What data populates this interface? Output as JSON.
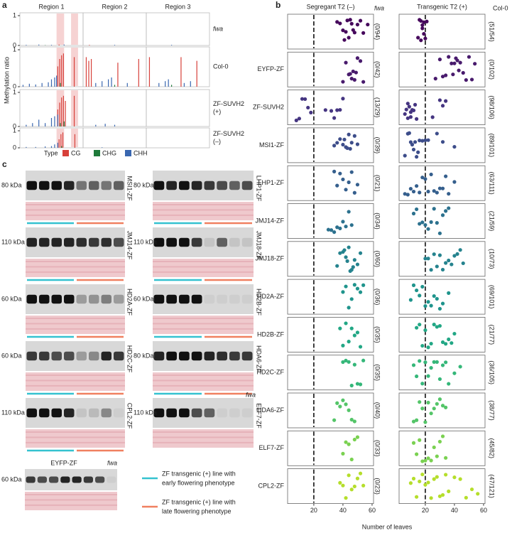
{
  "chart_data": [
    {
      "type": "bar",
      "panel_label": "a",
      "y_label": "Methylation ratio",
      "regions": [
        "Region 1",
        "Region 2",
        "Region 3"
      ],
      "xlim": [
        0,
        3
      ],
      "ylim": [
        0,
        1
      ],
      "yticks": [
        0,
        1
      ],
      "legend_title": "Type",
      "series": [
        {
          "name": "CG",
          "color": "#d7403a"
        },
        {
          "name": "CHG",
          "color": "#1e7a3a"
        },
        {
          "name": "CHH",
          "color": "#3a67b0"
        }
      ],
      "panels": [
        {
          "label": [
            "fwa"
          ],
          "data": [
            {
              "x": [
                0.62,
                1.1
              ],
              "values": [
                0.03,
                0.02
              ]
            },
            {
              "x": [
                0.4
              ],
              "values": [
                0.01
              ]
            },
            {
              "x": [
                0.1,
                0.3,
                0.5,
                0.7,
                1.5,
                2.4
              ],
              "values": [
                0.02,
                0.03,
                0.02,
                0.03,
                0.02,
                0.02
              ]
            }
          ]
        },
        {
          "label": [
            "Col-0"
          ],
          "data": [
            {
              "x": [
                0.6,
                0.63,
                0.66,
                0.69,
                0.86,
                1.05,
                1.09,
                1.13,
                1.55,
                1.88,
                2.05,
                2.55,
                2.8
              ],
              "values": [
                0.55,
                0.75,
                0.85,
                0.9,
                0.8,
                0.8,
                0.7,
                0.75,
                0.65,
                0.75,
                0.8,
                0.8,
                0.7
              ]
            },
            {
              "x": [
                0.5,
                0.64,
                1.5,
                2.4
              ],
              "values": [
                0.05,
                0.1,
                0.05,
                0.05
              ]
            },
            {
              "x": [
                0.05,
                0.15,
                0.25,
                0.35,
                0.45,
                0.5,
                0.55,
                0.58,
                1.2,
                1.3,
                1.4,
                1.45,
                1.7,
                2.2,
                2.3,
                2.35,
                2.6,
                2.7
              ],
              "values": [
                0.05,
                0.08,
                0.06,
                0.1,
                0.12,
                0.2,
                0.25,
                0.3,
                0.1,
                0.15,
                0.2,
                0.25,
                0.1,
                0.1,
                0.15,
                0.2,
                0.1,
                0.15
              ]
            }
          ]
        },
        {
          "label": [
            "ZF-SUVH2",
            "(+)"
          ],
          "data": [
            {
              "x": [
                0.6,
                0.63,
                0.66,
                0.69,
                0.72,
                0.86
              ],
              "values": [
                0.5,
                0.7,
                0.85,
                0.9,
                0.75,
                0.9
              ]
            },
            {
              "x": [
                0.64,
                0.7
              ],
              "values": [
                0.1,
                0.15
              ]
            },
            {
              "x": [
                0.1,
                0.2,
                0.3,
                0.4,
                0.5,
                0.55,
                0.6,
                1.2,
                1.35,
                1.5
              ],
              "values": [
                0.05,
                0.1,
                0.2,
                0.1,
                0.25,
                0.3,
                0.35,
                0.05,
                0.08,
                0.05
              ]
            }
          ]
        },
        {
          "label": [
            "ZF-SUVH2",
            "(–)"
          ],
          "data": [
            {
              "x": [
                0.62,
                0.65,
                0.68,
                0.87
              ],
              "values": [
                0.5,
                0.8,
                0.9,
                0.8
              ]
            },
            {
              "x": [
                0.66
              ],
              "values": [
                0.1
              ]
            },
            {
              "x": [
                0.1,
                0.25,
                0.4,
                0.5,
                0.55,
                0.6,
                1.3
              ],
              "values": [
                0.05,
                0.05,
                0.08,
                0.1,
                0.2,
                0.3,
                0.03
              ]
            }
          ]
        }
      ]
    },
    {
      "type": "strip",
      "panel_label": "b",
      "x_label": "Number of leaves",
      "columns": [
        "Segregant T2 (–)",
        "Transgenic T2 (+)"
      ],
      "column_headers": [
        "fwa",
        "Col-0"
      ],
      "xlim": [
        2,
        61
      ],
      "xticks": [
        20,
        40,
        60
      ],
      "reference_line": 20,
      "rows": [
        {
          "color": "#46085c",
          "segregant": {
            "label": "(0/94)",
            "values": [
              36,
              38,
              40,
              41,
              42,
              43,
              44,
              45,
              46,
              47,
              48,
              50,
              52,
              54,
              57
            ]
          },
          "transgenic": {
            "label": "(51/54)",
            "values": [
              15,
              16,
              17,
              17,
              18,
              18,
              19,
              19,
              20,
              21
            ]
          }
        },
        {
          "name": "EYFP-ZF",
          "color": "#481a6c",
          "segregant": {
            "label": "(0/42)",
            "values": [
              40,
              42,
              44,
              45,
              46,
              47,
              48,
              49,
              50,
              52,
              54
            ]
          },
          "transgenic": {
            "label": "(0/102)",
            "values": [
              27,
              30,
              32,
              34,
              36,
              38,
              39,
              40,
              41,
              42,
              43,
              44,
              46,
              48,
              50,
              52,
              54
            ]
          }
        },
        {
          "name": "ZF-SUVH2",
          "color": "#453581",
          "segregant": {
            "label": "(13/29)",
            "values": [
              8,
              10,
              12,
              14,
              16,
              18,
              28,
              32,
              34,
              36,
              38,
              40
            ]
          },
          "transgenic": {
            "label": "(98/106)",
            "values": [
              6,
              7,
              8,
              8,
              9,
              10,
              10,
              11,
              12,
              13,
              14,
              25,
              30,
              32,
              34
            ]
          }
        },
        {
          "name": "MSI1-ZF",
          "color": "#3d4d8a",
          "segregant": {
            "label": "(0/39)",
            "values": [
              34,
              36,
              38,
              40,
              41,
              42,
              43,
              44,
              45,
              46,
              48,
              50
            ]
          },
          "transgenic": {
            "label": "(89/101)",
            "values": [
              6,
              8,
              9,
              10,
              11,
              12,
              13,
              14,
              15,
              16,
              18,
              20,
              22,
              28,
              32,
              40
            ]
          }
        },
        {
          "name": "LHP1-ZF",
          "color": "#355f8d",
          "segregant": {
            "label": "(0/21)",
            "values": [
              34,
              36,
              38,
              40,
              42,
              44,
              46,
              48,
              50
            ]
          },
          "transgenic": {
            "label": "(63/111)",
            "values": [
              6,
              8,
              10,
              12,
              14,
              16,
              18,
              20,
              22,
              24,
              26,
              28,
              30,
              32,
              34,
              36,
              40
            ]
          }
        },
        {
          "name": "JMJ14-ZF",
          "color": "#2c718e",
          "segregant": {
            "label": "(0/34)",
            "values": [
              30,
              32,
              34,
              36,
              38,
              40,
              42,
              44,
              46
            ]
          },
          "transgenic": {
            "label": "(21/59)",
            "values": [
              12,
              14,
              16,
              18,
              20,
              22,
              24,
              26,
              28,
              30,
              32,
              34,
              36
            ]
          }
        },
        {
          "name": "JMJ18-ZF",
          "color": "#25838e",
          "segregant": {
            "label": "(0/60)",
            "values": [
              36,
              38,
              40,
              41,
              42,
              43,
              44,
              45,
              46,
              47,
              48,
              50,
              52
            ]
          },
          "transgenic": {
            "label": "(10/73)",
            "values": [
              20,
              22,
              24,
              26,
              28,
              30,
              32,
              34,
              36,
              38,
              40,
              42,
              44,
              46
            ]
          }
        },
        {
          "name": "HD2A-ZF",
          "color": "#1f948c",
          "segregant": {
            "label": "(0/36)",
            "values": [
              40,
              42,
              44,
              46,
              48,
              50,
              52,
              54
            ]
          },
          "transgenic": {
            "label": "(69/101)",
            "values": [
              10,
              12,
              14,
              16,
              18,
              20,
              22,
              24,
              26,
              28,
              30,
              32,
              36
            ]
          }
        },
        {
          "name": "HD2B-ZF",
          "color": "#22a785",
          "segregant": {
            "label": "(0/35)",
            "values": [
              38,
              40,
              42,
              44,
              46,
              48,
              50,
              52
            ]
          },
          "transgenic": {
            "label": "(21/77)",
            "values": [
              14,
              16,
              18,
              20,
              22,
              24,
              26,
              28,
              30,
              32,
              34,
              36,
              38,
              40
            ]
          }
        },
        {
          "name": "HD2C-ZF",
          "color": "#35b779",
          "segregant": {
            "label": "(0/35)",
            "values": [
              40,
              42,
              44,
              46,
              48,
              50,
              52,
              54
            ]
          },
          "transgenic": {
            "label": "(36/105)",
            "values": [
              12,
              14,
              16,
              18,
              20,
              22,
              24,
              26,
              28,
              30,
              32,
              34,
              36,
              40,
              44
            ]
          }
        },
        {
          "name": "HDA6-ZF",
          "color": "#54c568",
          "segregant": {
            "label": "(0/40)",
            "values": [
              34,
              36,
              38,
              40,
              42,
              44,
              46,
              48
            ]
          },
          "transgenic": {
            "label": "(38/77)",
            "values": [
              12,
              14,
              16,
              18,
              20,
              22,
              24,
              26,
              28,
              30,
              32,
              34
            ]
          }
        },
        {
          "name": "ELF7-ZF",
          "color": "#7ad151",
          "segregant": {
            "label": "(0/33)",
            "values": [
              40,
              42,
              44,
              46,
              48,
              50
            ]
          },
          "transgenic": {
            "label": "(45/82)",
            "values": [
              12,
              14,
              16,
              18,
              20,
              22,
              24,
              26,
              28,
              30,
              32,
              34
            ]
          }
        },
        {
          "name": "CPL2-ZF",
          "color": "#b5de2b",
          "segregant": {
            "label": "(0/23)",
            "values": [
              38,
              40,
              42,
              44,
              46,
              48,
              50,
              52,
              54
            ]
          },
          "transgenic": {
            "label": "(47/121)",
            "values": [
              10,
              12,
              14,
              16,
              18,
              20,
              22,
              24,
              26,
              28,
              30,
              32,
              34,
              36,
              40,
              44,
              48,
              52,
              56
            ]
          }
        }
      ]
    }
  ],
  "panel_c": {
    "panel_label": "c",
    "blots": [
      {
        "size": "80 kDa",
        "name": "MSI1-ZF"
      },
      {
        "size": "80 kDa",
        "name": "LHP1-ZF"
      },
      {
        "size": "110 kDa",
        "name": "JMJ14-ZF"
      },
      {
        "size": "110 kDa",
        "name": "JMJ18-ZF"
      },
      {
        "size": "60 kDa",
        "name": "HD2A-ZF"
      },
      {
        "size": "60 kDa",
        "name": "HD2B-ZF"
      },
      {
        "size": "60 kDa",
        "name": "HD2C-ZF"
      },
      {
        "size": "80 kDa",
        "name": "HDA6-ZF"
      },
      {
        "size": "110 kDa",
        "name": "CPL2-ZF"
      },
      {
        "size": "110 kDa",
        "name": "ELF7-ZF",
        "control": "fwa"
      }
    ],
    "eyfp_blot": {
      "title": "EYFP-ZF",
      "size": "60 kDa",
      "control": "fwa"
    },
    "legend": [
      {
        "lines": [
          "ZF transgenic (+) line with",
          "early flowering phenotype"
        ],
        "color": "#35c2d0"
      },
      {
        "lines": [
          "ZF transgenic (+) line with",
          "late flowering phenotype"
        ],
        "color": "#f08060"
      }
    ]
  }
}
